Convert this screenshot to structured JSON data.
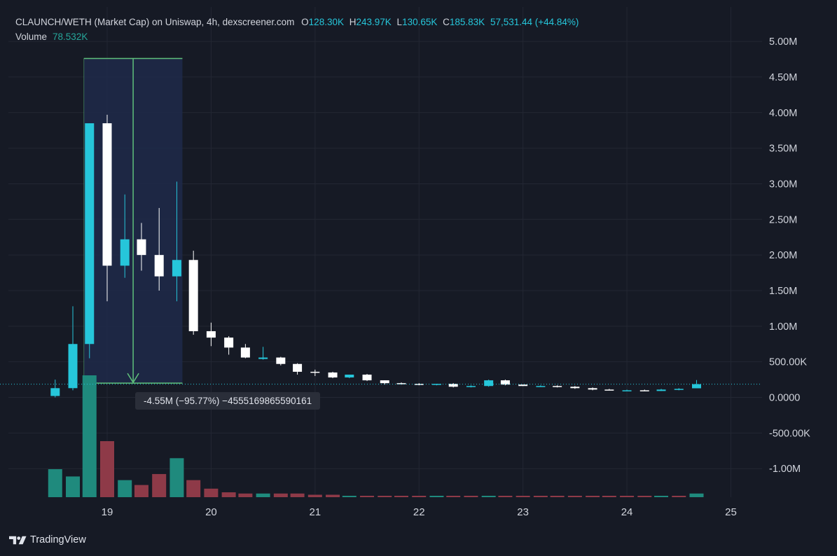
{
  "legend": {
    "title": "CLAUNCH/WETH (Market Cap) on Uniswap, 4h, dexscreener.com",
    "o_key": "O",
    "o_val": "128.30K",
    "h_key": "H",
    "h_val": "243.97K",
    "l_key": "L",
    "l_val": "130.65K",
    "c_key": "C",
    "c_val": "185.83K",
    "change": "57,531.44 (+44.84%)",
    "volume_label": "Volume",
    "volume_val": "78.532K"
  },
  "measure": {
    "label": "-4.55M (−95.77%) −4555169865590161",
    "from_time": 18.83,
    "to_time": 19.67,
    "top_value": 4.76,
    "bottom_value": 0.2
  },
  "brand": {
    "name": "TradingView",
    "logo_icon": "tradingview-logo-icon"
  },
  "colors": {
    "background": "#161a25",
    "grid": "#232733",
    "up": "#26c6da",
    "down": "#ffffff",
    "volume_up": "#1f8a7d",
    "volume_down": "#8e3a48",
    "axis_text": "#d1d4dc",
    "measure_fill": "#1e2a4a",
    "measure_line": "#5fbf7a",
    "price_line": "#26c6da"
  },
  "chart_data": {
    "type": "candlestick",
    "x_axis": {
      "ticks": [
        19,
        20,
        21,
        22,
        23,
        24,
        25
      ],
      "tick_labels": [
        "19",
        "20",
        "21",
        "22",
        "23",
        "24",
        "25"
      ],
      "range": [
        18.05,
        25.3
      ]
    },
    "y_axis": {
      "range": [
        -1.47,
        5.05
      ],
      "unit": "M",
      "ticks": [
        5,
        4.5,
        4,
        3.5,
        3,
        2.5,
        2,
        1.5,
        1,
        0.5,
        0,
        -0.5,
        -1
      ],
      "tick_labels": [
        "5.00M",
        "4.50M",
        "4.00M",
        "3.50M",
        "3.00M",
        "2.50M",
        "2.00M",
        "1.50M",
        "1.00M",
        "500.00K",
        "0.0000",
        "-500.00K",
        "-1.00M"
      ]
    },
    "grid": true,
    "last_price": 0.186,
    "candles": [
      {
        "t": 18.5,
        "o": 0.02,
        "h": 0.25,
        "l": 0.0,
        "c": 0.13
      },
      {
        "t": 18.67,
        "o": 0.13,
        "h": 1.28,
        "l": 0.1,
        "c": 0.75
      },
      {
        "t": 18.83,
        "o": 0.75,
        "h": 3.85,
        "l": 0.55,
        "c": 3.85
      },
      {
        "t": 19.0,
        "o": 3.85,
        "h": 3.97,
        "l": 1.35,
        "c": 1.85
      },
      {
        "t": 19.17,
        "o": 1.85,
        "h": 2.85,
        "l": 1.68,
        "c": 2.22
      },
      {
        "t": 19.33,
        "o": 2.22,
        "h": 2.45,
        "l": 1.78,
        "c": 2.0
      },
      {
        "t": 19.5,
        "o": 2.0,
        "h": 2.66,
        "l": 1.5,
        "c": 1.7
      },
      {
        "t": 19.67,
        "o": 1.7,
        "h": 3.03,
        "l": 1.35,
        "c": 1.93
      },
      {
        "t": 19.83,
        "o": 1.93,
        "h": 2.06,
        "l": 0.88,
        "c": 0.93
      },
      {
        "t": 20.0,
        "o": 0.93,
        "h": 1.05,
        "l": 0.72,
        "c": 0.84
      },
      {
        "t": 20.17,
        "o": 0.84,
        "h": 0.86,
        "l": 0.6,
        "c": 0.7
      },
      {
        "t": 20.33,
        "o": 0.7,
        "h": 0.75,
        "l": 0.55,
        "c": 0.56
      },
      {
        "t": 20.5,
        "o": 0.54,
        "h": 0.71,
        "l": 0.53,
        "c": 0.56
      },
      {
        "t": 20.67,
        "o": 0.56,
        "h": 0.57,
        "l": 0.45,
        "c": 0.47
      },
      {
        "t": 20.83,
        "o": 0.47,
        "h": 0.48,
        "l": 0.32,
        "c": 0.36
      },
      {
        "t": 21.0,
        "o": 0.36,
        "h": 0.39,
        "l": 0.3,
        "c": 0.35
      },
      {
        "t": 21.17,
        "o": 0.35,
        "h": 0.36,
        "l": 0.27,
        "c": 0.28
      },
      {
        "t": 21.33,
        "o": 0.28,
        "h": 0.32,
        "l": 0.27,
        "c": 0.32
      },
      {
        "t": 21.5,
        "o": 0.32,
        "h": 0.33,
        "l": 0.23,
        "c": 0.24
      },
      {
        "t": 21.67,
        "o": 0.24,
        "h": 0.24,
        "l": 0.18,
        "c": 0.2
      },
      {
        "t": 21.83,
        "o": 0.2,
        "h": 0.21,
        "l": 0.18,
        "c": 0.19
      },
      {
        "t": 22.0,
        "o": 0.19,
        "h": 0.2,
        "l": 0.17,
        "c": 0.18
      },
      {
        "t": 22.17,
        "o": 0.18,
        "h": 0.19,
        "l": 0.17,
        "c": 0.19
      },
      {
        "t": 22.33,
        "o": 0.19,
        "h": 0.2,
        "l": 0.14,
        "c": 0.15
      },
      {
        "t": 22.5,
        "o": 0.15,
        "h": 0.17,
        "l": 0.14,
        "c": 0.16
      },
      {
        "t": 22.67,
        "o": 0.16,
        "h": 0.25,
        "l": 0.15,
        "c": 0.24
      },
      {
        "t": 22.83,
        "o": 0.24,
        "h": 0.25,
        "l": 0.17,
        "c": 0.18
      },
      {
        "t": 23.0,
        "o": 0.18,
        "h": 0.18,
        "l": 0.16,
        "c": 0.16
      },
      {
        "t": 23.17,
        "o": 0.16,
        "h": 0.17,
        "l": 0.15,
        "c": 0.16
      },
      {
        "t": 23.33,
        "o": 0.16,
        "h": 0.17,
        "l": 0.14,
        "c": 0.15
      },
      {
        "t": 23.5,
        "o": 0.15,
        "h": 0.16,
        "l": 0.12,
        "c": 0.13
      },
      {
        "t": 23.67,
        "o": 0.13,
        "h": 0.14,
        "l": 0.1,
        "c": 0.11
      },
      {
        "t": 23.83,
        "o": 0.11,
        "h": 0.12,
        "l": 0.1,
        "c": 0.1
      },
      {
        "t": 24.0,
        "o": 0.1,
        "h": 0.11,
        "l": 0.09,
        "c": 0.1
      },
      {
        "t": 24.17,
        "o": 0.1,
        "h": 0.11,
        "l": 0.09,
        "c": 0.09
      },
      {
        "t": 24.33,
        "o": 0.09,
        "h": 0.12,
        "l": 0.09,
        "c": 0.11
      },
      {
        "t": 24.5,
        "o": 0.11,
        "h": 0.13,
        "l": 0.1,
        "c": 0.12
      },
      {
        "t": 24.67,
        "o": 0.128,
        "h": 0.244,
        "l": 0.131,
        "c": 0.186
      }
    ],
    "volume": {
      "max": 1.0,
      "bars": [
        {
          "t": 18.5,
          "v": 0.23,
          "dir": "up"
        },
        {
          "t": 18.67,
          "v": 0.17,
          "dir": "up"
        },
        {
          "t": 18.83,
          "v": 1.0,
          "dir": "up"
        },
        {
          "t": 19.0,
          "v": 0.46,
          "dir": "down"
        },
        {
          "t": 19.17,
          "v": 0.14,
          "dir": "up"
        },
        {
          "t": 19.33,
          "v": 0.1,
          "dir": "down"
        },
        {
          "t": 19.5,
          "v": 0.19,
          "dir": "down"
        },
        {
          "t": 19.67,
          "v": 0.32,
          "dir": "up"
        },
        {
          "t": 19.83,
          "v": 0.14,
          "dir": "down"
        },
        {
          "t": 20.0,
          "v": 0.07,
          "dir": "down"
        },
        {
          "t": 20.17,
          "v": 0.04,
          "dir": "down"
        },
        {
          "t": 20.33,
          "v": 0.03,
          "dir": "down"
        },
        {
          "t": 20.5,
          "v": 0.03,
          "dir": "up"
        },
        {
          "t": 20.67,
          "v": 0.03,
          "dir": "down"
        },
        {
          "t": 20.83,
          "v": 0.03,
          "dir": "down"
        },
        {
          "t": 21.0,
          "v": 0.02,
          "dir": "down"
        },
        {
          "t": 21.17,
          "v": 0.02,
          "dir": "down"
        },
        {
          "t": 21.33,
          "v": 0.01,
          "dir": "up"
        },
        {
          "t": 21.5,
          "v": 0.01,
          "dir": "down"
        },
        {
          "t": 21.67,
          "v": 0.01,
          "dir": "down"
        },
        {
          "t": 21.83,
          "v": 0.01,
          "dir": "down"
        },
        {
          "t": 22.0,
          "v": 0.01,
          "dir": "down"
        },
        {
          "t": 22.17,
          "v": 0.01,
          "dir": "up"
        },
        {
          "t": 22.33,
          "v": 0.01,
          "dir": "down"
        },
        {
          "t": 22.5,
          "v": 0.01,
          "dir": "down"
        },
        {
          "t": 22.67,
          "v": 0.01,
          "dir": "up"
        },
        {
          "t": 22.83,
          "v": 0.01,
          "dir": "down"
        },
        {
          "t": 23.0,
          "v": 0.01,
          "dir": "down"
        },
        {
          "t": 23.17,
          "v": 0.01,
          "dir": "down"
        },
        {
          "t": 23.33,
          "v": 0.01,
          "dir": "down"
        },
        {
          "t": 23.5,
          "v": 0.01,
          "dir": "down"
        },
        {
          "t": 23.67,
          "v": 0.01,
          "dir": "down"
        },
        {
          "t": 23.83,
          "v": 0.01,
          "dir": "down"
        },
        {
          "t": 24.0,
          "v": 0.01,
          "dir": "down"
        },
        {
          "t": 24.17,
          "v": 0.01,
          "dir": "down"
        },
        {
          "t": 24.33,
          "v": 0.01,
          "dir": "up"
        },
        {
          "t": 24.5,
          "v": 0.01,
          "dir": "down"
        },
        {
          "t": 24.67,
          "v": 0.03,
          "dir": "up"
        }
      ]
    }
  }
}
